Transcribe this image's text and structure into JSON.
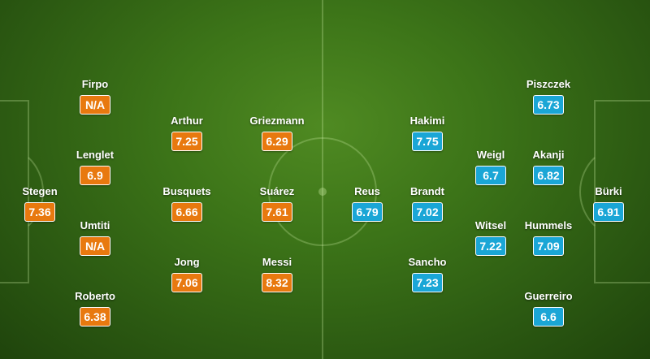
{
  "colors": {
    "home": "#e8790f",
    "away": "#1aa6d6",
    "pitch": "#3c7418"
  },
  "home_team": {
    "players": [
      {
        "key": "stegen",
        "name": "Stegen",
        "rating": "7.36"
      },
      {
        "key": "firpo",
        "name": "Firpo",
        "rating": "N/A"
      },
      {
        "key": "lenglet",
        "name": "Lenglet",
        "rating": "6.9"
      },
      {
        "key": "umtiti",
        "name": "Umtiti",
        "rating": "N/A"
      },
      {
        "key": "roberto",
        "name": "Roberto",
        "rating": "6.38"
      },
      {
        "key": "arthur",
        "name": "Arthur",
        "rating": "7.25"
      },
      {
        "key": "busquets",
        "name": "Busquets",
        "rating": "6.66"
      },
      {
        "key": "jong",
        "name": "Jong",
        "rating": "7.06"
      },
      {
        "key": "griezmann",
        "name": "Griezmann",
        "rating": "6.29"
      },
      {
        "key": "suarez",
        "name": "Suárez",
        "rating": "7.61"
      },
      {
        "key": "messi",
        "name": "Messi",
        "rating": "8.32"
      }
    ]
  },
  "away_team": {
    "players": [
      {
        "key": "reus",
        "name": "Reus",
        "rating": "6.79"
      },
      {
        "key": "hakimi",
        "name": "Hakimi",
        "rating": "7.75"
      },
      {
        "key": "brandt",
        "name": "Brandt",
        "rating": "7.02"
      },
      {
        "key": "sancho",
        "name": "Sancho",
        "rating": "7.23"
      },
      {
        "key": "weigl",
        "name": "Weigl",
        "rating": "6.7"
      },
      {
        "key": "witsel",
        "name": "Witsel",
        "rating": "7.22"
      },
      {
        "key": "piszczek",
        "name": "Piszczek",
        "rating": "6.73"
      },
      {
        "key": "akanji",
        "name": "Akanji",
        "rating": "6.82"
      },
      {
        "key": "hummels",
        "name": "Hummels",
        "rating": "7.09"
      },
      {
        "key": "guerreiro",
        "name": "Guerreiro",
        "rating": "6.6"
      },
      {
        "key": "burki",
        "name": "Bürki",
        "rating": "6.91"
      }
    ]
  }
}
